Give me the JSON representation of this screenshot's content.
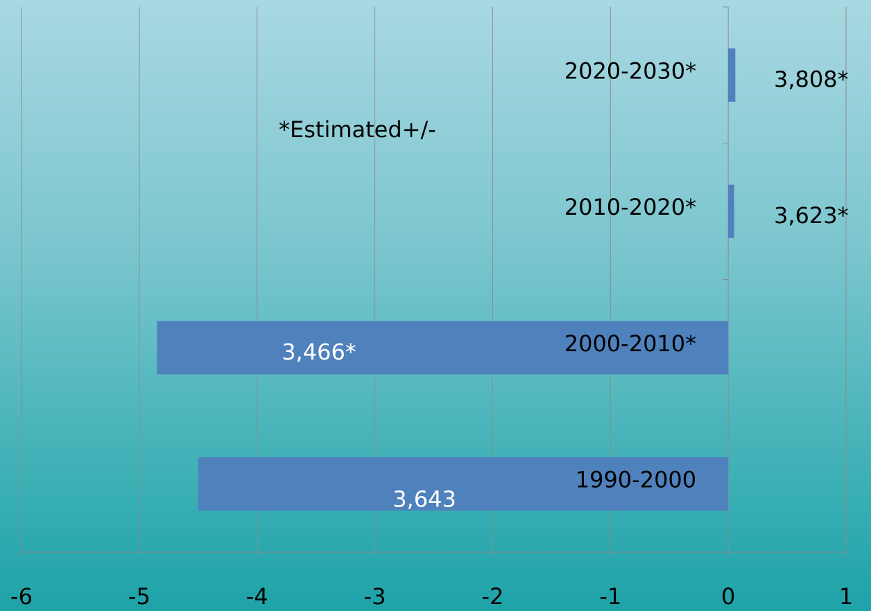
{
  "colors": {
    "bar": "#4f81bd",
    "gridline": "#8c8c8c",
    "text_dark": "#000000",
    "text_light": "#ffffff"
  },
  "chart_data": {
    "type": "bar",
    "orientation": "horizontal",
    "categories": [
      "1990-2000",
      "2000-2010*",
      "2010-2020*",
      "2020-2030*"
    ],
    "values": [
      -4.5,
      -4.85,
      0.05,
      0.06
    ],
    "data_labels": [
      "3,643",
      "3,466*",
      "3,623*",
      "3,808*"
    ],
    "x_ticks": [
      -6,
      -5,
      -4,
      -3,
      -2,
      -1,
      0,
      1
    ],
    "x_tick_labels": [
      "-6",
      "-5",
      "-4",
      "-3",
      "-2",
      "-1",
      "0",
      "1"
    ],
    "xlim": [
      -6,
      1
    ],
    "annotation": "*Estimated+/-",
    "grid": true,
    "legend": "none"
  }
}
